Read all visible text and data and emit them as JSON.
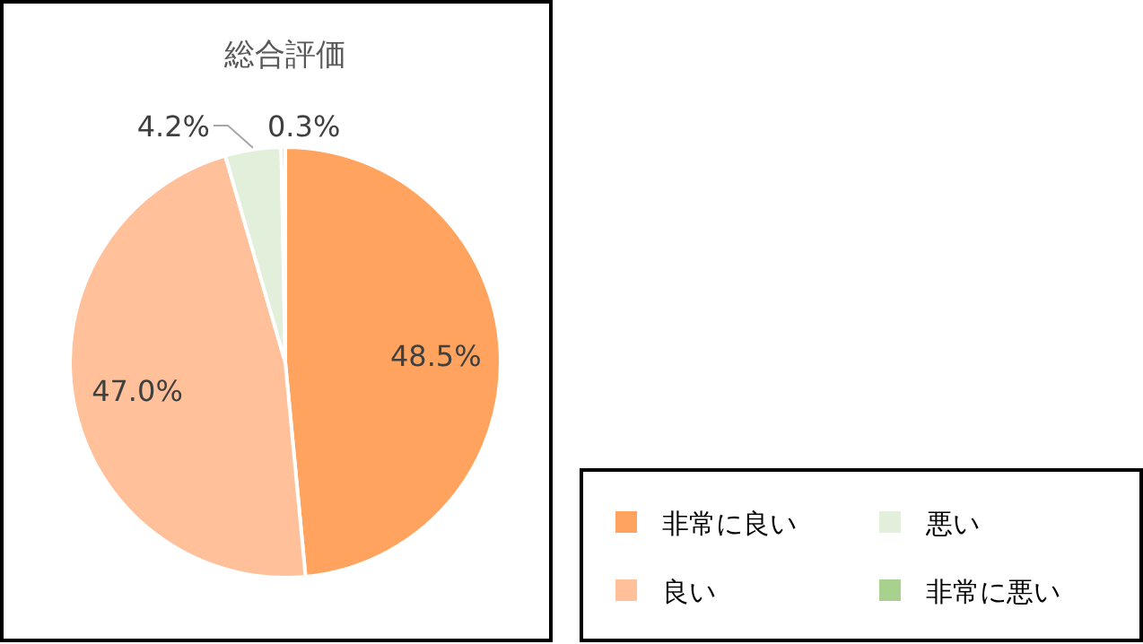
{
  "chart_data": {
    "type": "pie",
    "title": "総合評価",
    "categories": [
      "非常に良い",
      "良い",
      "悪い",
      "非常に悪い"
    ],
    "values": [
      48.5,
      47.0,
      4.2,
      0.3
    ],
    "colors": [
      "#ffa35f",
      "#ffc09a",
      "#e2efda",
      "#a9d18e"
    ],
    "value_labels": [
      "48.5%",
      "47.0%",
      "4.2%",
      "0.3%"
    ],
    "legend": "bottom right"
  }
}
